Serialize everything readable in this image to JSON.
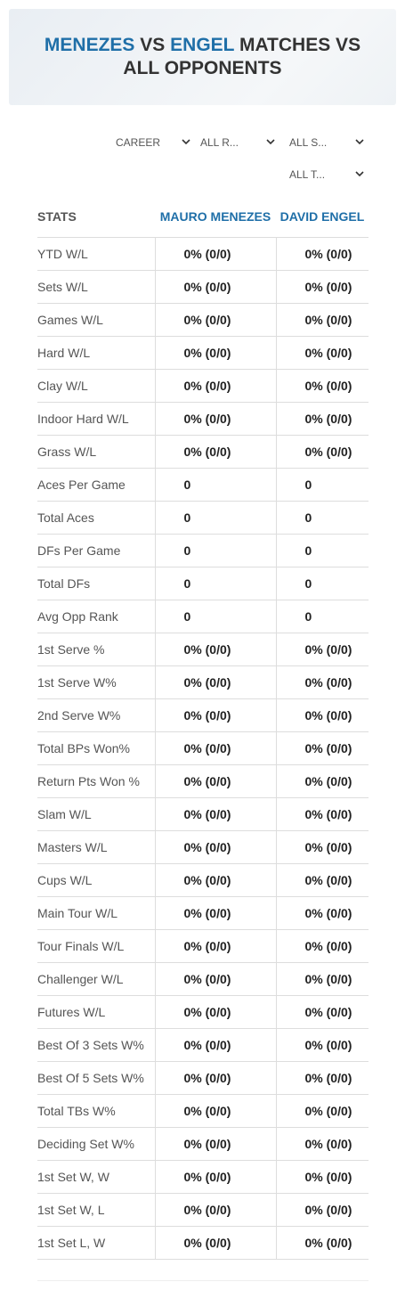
{
  "header": {
    "title": [
      "MENEZES",
      "VS",
      "ENGEL",
      "MATCHES VS ALL OPPONENTS"
    ]
  },
  "filters": [
    "CAREER",
    "ALL R...",
    "ALL S...",
    "ALL T..."
  ],
  "table": {
    "columns": [
      "STATS",
      "MAURO MENEZES",
      "DAVID ENGEL"
    ],
    "rows": [
      [
        "YTD W/L",
        "0% (0/0)",
        "0% (0/0)"
      ],
      [
        "Sets W/L",
        "0% (0/0)",
        "0% (0/0)"
      ],
      [
        "Games W/L",
        "0% (0/0)",
        "0% (0/0)"
      ],
      [
        "Hard W/L",
        "0% (0/0)",
        "0% (0/0)"
      ],
      [
        "Clay W/L",
        "0% (0/0)",
        "0% (0/0)"
      ],
      [
        "Indoor Hard W/L",
        "0% (0/0)",
        "0% (0/0)"
      ],
      [
        "Grass W/L",
        "0% (0/0)",
        "0% (0/0)"
      ],
      [
        "Aces Per Game",
        "0",
        "0"
      ],
      [
        "Total Aces",
        "0",
        "0"
      ],
      [
        "DFs Per Game",
        "0",
        "0"
      ],
      [
        "Total DFs",
        "0",
        "0"
      ],
      [
        "Avg Opp Rank",
        "0",
        "0"
      ],
      [
        "1st Serve %",
        "0% (0/0)",
        "0% (0/0)"
      ],
      [
        "1st Serve W%",
        "0% (0/0)",
        "0% (0/0)"
      ],
      [
        "2nd Serve W%",
        "0% (0/0)",
        "0% (0/0)"
      ],
      [
        "Total BPs Won%",
        "0% (0/0)",
        "0% (0/0)"
      ],
      [
        "Return Pts Won %",
        "0% (0/0)",
        "0% (0/0)"
      ],
      [
        "Slam W/L",
        "0% (0/0)",
        "0% (0/0)"
      ],
      [
        "Masters W/L",
        "0% (0/0)",
        "0% (0/0)"
      ],
      [
        "Cups W/L",
        "0% (0/0)",
        "0% (0/0)"
      ],
      [
        "Main Tour W/L",
        "0% (0/0)",
        "0% (0/0)"
      ],
      [
        "Tour Finals W/L",
        "0% (0/0)",
        "0% (0/0)"
      ],
      [
        "Challenger W/L",
        "0% (0/0)",
        "0% (0/0)"
      ],
      [
        "Futures W/L",
        "0% (0/0)",
        "0% (0/0)"
      ],
      [
        "Best Of 3 Sets W%",
        "0% (0/0)",
        "0% (0/0)"
      ],
      [
        "Best Of 5 Sets W%",
        "0% (0/0)",
        "0% (0/0)"
      ],
      [
        "Total TBs W%",
        "0% (0/0)",
        "0% (0/0)"
      ],
      [
        "Deciding Set W%",
        "0% (0/0)",
        "0% (0/0)"
      ],
      [
        "1st Set W, W",
        "0% (0/0)",
        "0% (0/0)"
      ],
      [
        "1st Set W, L",
        "0% (0/0)",
        "0% (0/0)"
      ],
      [
        "1st Set L, W",
        "0% (0/0)",
        "0% (0/0)"
      ]
    ]
  }
}
